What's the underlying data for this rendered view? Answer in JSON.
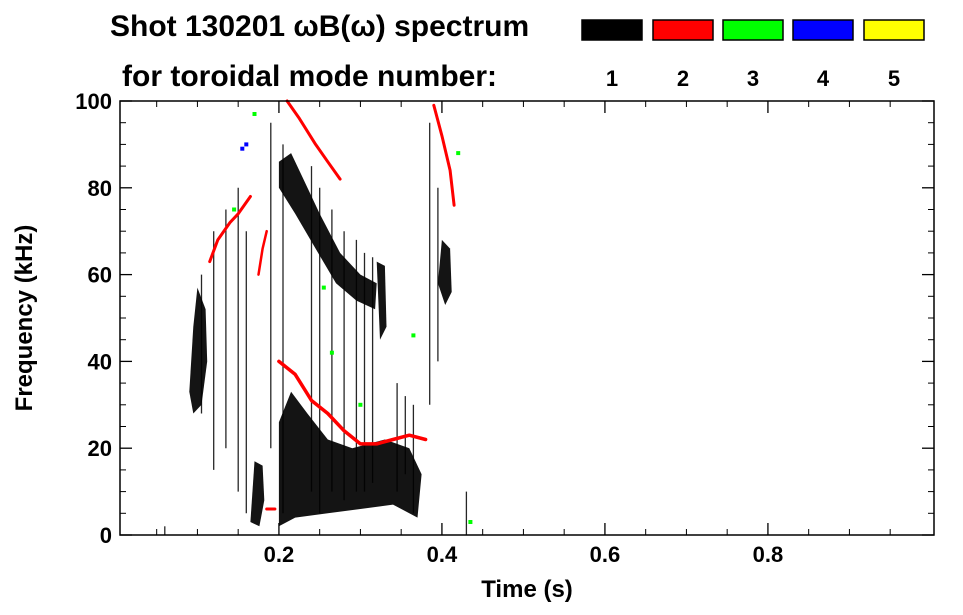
{
  "chart_data": {
    "type": "heatmap",
    "title": "Shot 130201 ωB(ω) spectrum",
    "subtitle": "for toroidal mode number:",
    "xlabel": "Time (s)",
    "ylabel": "Frequency (kHz)",
    "xlim": [
      0.0,
      1.0
    ],
    "ylim": [
      0,
      100
    ],
    "x_ticks": [
      0.2,
      0.4,
      0.6,
      0.8
    ],
    "x_tick_labels": [
      "0.2",
      "0.4",
      "0.6",
      "0.8"
    ],
    "y_ticks": [
      0,
      20,
      40,
      60,
      80,
      100
    ],
    "y_tick_labels": [
      "0",
      "20",
      "40",
      "60",
      "80",
      "100"
    ],
    "legend": [
      {
        "label": "1",
        "color": "#000000"
      },
      {
        "label": "2",
        "color": "#ff0000"
      },
      {
        "label": "3",
        "color": "#00ff00"
      },
      {
        "label": "4",
        "color": "#0000ff"
      },
      {
        "label": "5",
        "color": "#ffff00"
      }
    ],
    "regions": [
      {
        "mode": "1",
        "name": "n1-early-burst",
        "points": [
          [
            0.09,
            33
          ],
          [
            0.095,
            48
          ],
          [
            0.1,
            57
          ],
          [
            0.11,
            52
          ],
          [
            0.112,
            40
          ],
          [
            0.105,
            30
          ],
          [
            0.095,
            28
          ]
        ]
      },
      {
        "mode": "1",
        "name": "n1-upper-band",
        "points": [
          [
            0.2,
            86
          ],
          [
            0.215,
            88
          ],
          [
            0.23,
            82
          ],
          [
            0.25,
            74
          ],
          [
            0.275,
            65
          ],
          [
            0.3,
            60
          ],
          [
            0.32,
            58
          ],
          [
            0.318,
            52
          ],
          [
            0.295,
            54
          ],
          [
            0.27,
            58
          ],
          [
            0.245,
            66
          ],
          [
            0.22,
            74
          ],
          [
            0.2,
            80
          ]
        ]
      },
      {
        "mode": "1",
        "name": "n1-lower-band",
        "points": [
          [
            0.2,
            2
          ],
          [
            0.2,
            26
          ],
          [
            0.215,
            33
          ],
          [
            0.235,
            28
          ],
          [
            0.26,
            22
          ],
          [
            0.29,
            20
          ],
          [
            0.33,
            22
          ],
          [
            0.36,
            20
          ],
          [
            0.375,
            14
          ],
          [
            0.37,
            4
          ],
          [
            0.34,
            7
          ],
          [
            0.3,
            6
          ],
          [
            0.26,
            5
          ],
          [
            0.22,
            4
          ]
        ]
      },
      {
        "mode": "1",
        "name": "n1-early-lowfreq",
        "points": [
          [
            0.165,
            3
          ],
          [
            0.17,
            17
          ],
          [
            0.18,
            16
          ],
          [
            0.182,
            8
          ],
          [
            0.176,
            2
          ]
        ]
      },
      {
        "mode": "1",
        "name": "n1-late-burst",
        "points": [
          [
            0.395,
            58
          ],
          [
            0.4,
            68
          ],
          [
            0.41,
            66
          ],
          [
            0.412,
            56
          ],
          [
            0.404,
            53
          ]
        ]
      },
      {
        "mode": "1",
        "name": "n1-upper-tail",
        "points": [
          [
            0.32,
            63
          ],
          [
            0.33,
            62
          ],
          [
            0.332,
            48
          ],
          [
            0.324,
            45
          ]
        ]
      }
    ],
    "lines": [
      {
        "mode": "2",
        "name": "n2-chirp-low",
        "points": [
          [
            0.2,
            40
          ],
          [
            0.22,
            37
          ],
          [
            0.24,
            31
          ],
          [
            0.26,
            28
          ],
          [
            0.28,
            24
          ],
          [
            0.3,
            21
          ],
          [
            0.32,
            21
          ],
          [
            0.34,
            22
          ],
          [
            0.36,
            23
          ],
          [
            0.38,
            22
          ]
        ],
        "width": 3.5
      },
      {
        "mode": "2",
        "name": "n2-early-rise",
        "points": [
          [
            0.115,
            63
          ],
          [
            0.125,
            68
          ],
          [
            0.14,
            72
          ],
          [
            0.15,
            74
          ],
          [
            0.165,
            78
          ]
        ],
        "width": 3
      },
      {
        "mode": "2",
        "name": "n2-high-band",
        "points": [
          [
            0.21,
            100
          ],
          [
            0.225,
            96
          ],
          [
            0.245,
            90
          ],
          [
            0.26,
            86
          ],
          [
            0.275,
            82
          ]
        ],
        "width": 3
      },
      {
        "mode": "2",
        "name": "n2-late",
        "points": [
          [
            0.39,
            99
          ],
          [
            0.4,
            92
          ],
          [
            0.41,
            84
          ],
          [
            0.415,
            76
          ]
        ],
        "width": 3
      },
      {
        "mode": "2",
        "name": "n2-mid",
        "points": [
          [
            0.175,
            60
          ],
          [
            0.18,
            66
          ],
          [
            0.185,
            70
          ]
        ],
        "width": 2.5
      },
      {
        "mode": "2",
        "name": "n2-bottom",
        "points": [
          [
            0.185,
            6
          ],
          [
            0.195,
            6
          ]
        ],
        "width": 3
      }
    ],
    "streaks": [
      {
        "mode": "1",
        "t": 0.105,
        "f0": 28,
        "f1": 60
      },
      {
        "mode": "1",
        "t": 0.12,
        "f0": 15,
        "f1": 70
      },
      {
        "mode": "1",
        "t": 0.135,
        "f0": 20,
        "f1": 75
      },
      {
        "mode": "1",
        "t": 0.15,
        "f0": 10,
        "f1": 80
      },
      {
        "mode": "1",
        "t": 0.16,
        "f0": 5,
        "f1": 70
      },
      {
        "mode": "1",
        "t": 0.19,
        "f0": 20,
        "f1": 95
      },
      {
        "mode": "1",
        "t": 0.205,
        "f0": 5,
        "f1": 90
      },
      {
        "mode": "1",
        "t": 0.24,
        "f0": 10,
        "f1": 85
      },
      {
        "mode": "1",
        "t": 0.25,
        "f0": 5,
        "f1": 80
      },
      {
        "mode": "1",
        "t": 0.265,
        "f0": 10,
        "f1": 75
      },
      {
        "mode": "1",
        "t": 0.28,
        "f0": 8,
        "f1": 70
      },
      {
        "mode": "1",
        "t": 0.295,
        "f0": 10,
        "f1": 68
      },
      {
        "mode": "1",
        "t": 0.305,
        "f0": 10,
        "f1": 65
      },
      {
        "mode": "1",
        "t": 0.315,
        "f0": 12,
        "f1": 64
      },
      {
        "mode": "1",
        "t": 0.345,
        "f0": 10,
        "f1": 35
      },
      {
        "mode": "1",
        "t": 0.355,
        "f0": 14,
        "f1": 32
      },
      {
        "mode": "1",
        "t": 0.365,
        "f0": 5,
        "f1": 30
      },
      {
        "mode": "1",
        "t": 0.385,
        "f0": 30,
        "f1": 95
      },
      {
        "mode": "1",
        "t": 0.395,
        "f0": 40,
        "f1": 80
      },
      {
        "mode": "1",
        "t": 0.43,
        "f0": 0,
        "f1": 10
      },
      {
        "mode": "1",
        "t": 0.06,
        "f0": 0,
        "f1": 2
      }
    ],
    "specks": [
      {
        "mode": "3",
        "t": 0.17,
        "f": 97
      },
      {
        "mode": "3",
        "t": 0.145,
        "f": 75
      },
      {
        "mode": "3",
        "t": 0.255,
        "f": 57
      },
      {
        "mode": "3",
        "t": 0.265,
        "f": 42
      },
      {
        "mode": "3",
        "t": 0.365,
        "f": 46
      },
      {
        "mode": "3",
        "t": 0.3,
        "f": 30
      },
      {
        "mode": "3",
        "t": 0.42,
        "f": 88
      },
      {
        "mode": "3",
        "t": 0.435,
        "f": 3
      },
      {
        "mode": "4",
        "t": 0.155,
        "f": 89
      },
      {
        "mode": "4",
        "t": 0.16,
        "f": 90
      }
    ]
  }
}
